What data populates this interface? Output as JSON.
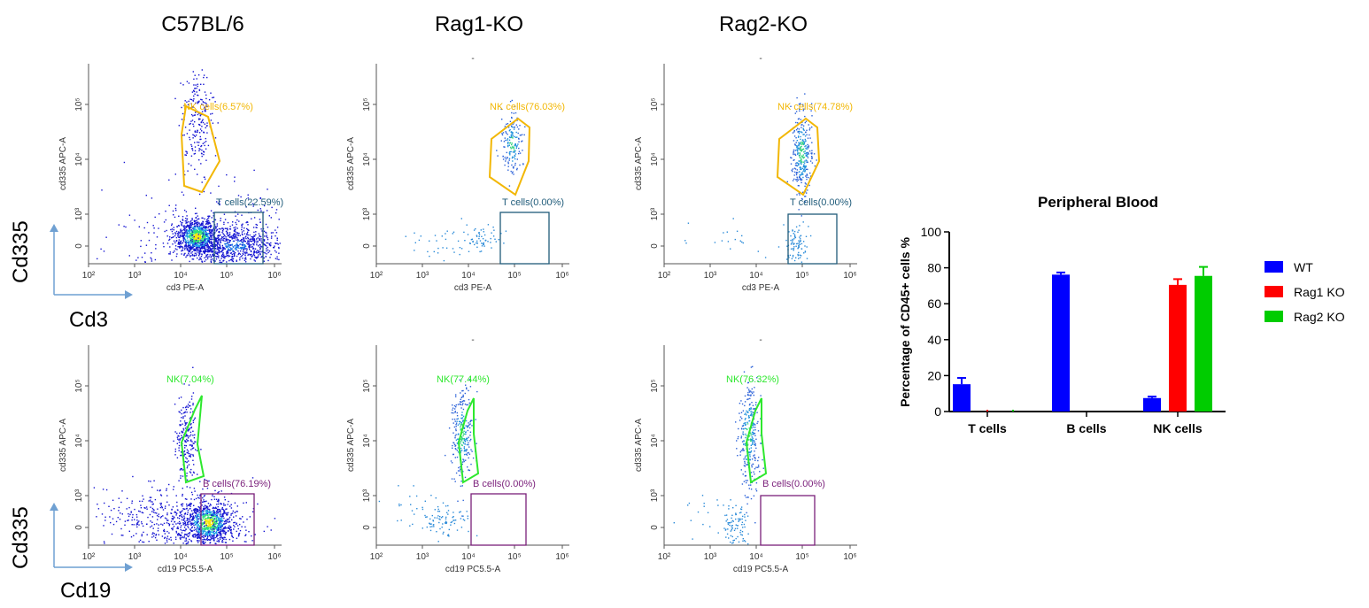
{
  "column_titles": [
    "C57BL/6",
    "Rag1-KO",
    "Rag2-KO"
  ],
  "row_labels": [
    {
      "y_marker": "Cd335",
      "x_marker": "Cd3"
    },
    {
      "y_marker": "Cd335",
      "x_marker": "Cd19"
    }
  ],
  "flow_panels": [
    {
      "row": 0,
      "col": 0,
      "y_axis_label": "cd335 APC-A",
      "x_axis_label": "cd3 PE-A",
      "x_ticks": [
        "10²",
        "10³",
        "10⁴",
        "10⁵",
        "10⁶"
      ],
      "y_ticks": [
        "0",
        "10³",
        "10⁴",
        "10⁵"
      ],
      "top_mark": "",
      "gates": [
        {
          "label": "NK cells(6.57%)",
          "shape": "polygon",
          "color": "#f2b705"
        },
        {
          "label": "T cells(22.59%)",
          "shape": "rect",
          "color": "#1f5b7a"
        }
      ]
    },
    {
      "row": 0,
      "col": 1,
      "y_axis_label": "cd335 APC-A",
      "x_axis_label": "cd3 PE-A",
      "x_ticks": [
        "10²",
        "10³",
        "10⁴",
        "10⁵",
        "10⁶"
      ],
      "y_ticks": [
        "0",
        "10³",
        "10⁴",
        "10⁵"
      ],
      "top_mark": "-",
      "gates": [
        {
          "label": "NK cells(76.03%)",
          "shape": "polygon",
          "color": "#f2b705"
        },
        {
          "label": "T cells(0.00%)",
          "shape": "rect",
          "color": "#1f5b7a"
        }
      ]
    },
    {
      "row": 0,
      "col": 2,
      "y_axis_label": "cd335 APC-A",
      "x_axis_label": "cd3 PE-A",
      "x_ticks": [
        "10²",
        "10³",
        "10⁴",
        "10⁵",
        "10⁶"
      ],
      "y_ticks": [
        "0",
        "10³",
        "10⁴",
        "10⁵"
      ],
      "top_mark": "-",
      "gates": [
        {
          "label": "NK cells(74.78%)",
          "shape": "polygon",
          "color": "#f2b705"
        },
        {
          "label": "T cells(0.00%)",
          "shape": "rect",
          "color": "#1f5b7a"
        }
      ]
    },
    {
      "row": 1,
      "col": 0,
      "y_axis_label": "cd335 APC-A",
      "x_axis_label": "cd19 PC5.5-A",
      "x_ticks": [
        "10²",
        "10³",
        "10⁴",
        "10⁵",
        "10⁶"
      ],
      "y_ticks": [
        "0",
        "10³",
        "10⁴",
        "10⁵"
      ],
      "top_mark": "",
      "gates": [
        {
          "label": "NK(7.04%)",
          "shape": "polygon",
          "color": "#2ee82e"
        },
        {
          "label": "B cells(76.19%)",
          "shape": "rect",
          "color": "#7a1f7a"
        }
      ]
    },
    {
      "row": 1,
      "col": 1,
      "y_axis_label": "cd335 APC-A",
      "x_axis_label": "cd19 PC5.5-A",
      "x_ticks": [
        "10²",
        "10³",
        "10⁴",
        "10⁵",
        "10⁶"
      ],
      "y_ticks": [
        "0",
        "10³",
        "10⁴",
        "10⁵"
      ],
      "top_mark": "-",
      "gates": [
        {
          "label": "NK(77.44%)",
          "shape": "polygon",
          "color": "#2ee82e"
        },
        {
          "label": "B cells(0.00%)",
          "shape": "rect",
          "color": "#7a1f7a"
        }
      ]
    },
    {
      "row": 1,
      "col": 2,
      "y_axis_label": "cd335 APC-A",
      "x_axis_label": "cd19 PC5.5-A",
      "x_ticks": [
        "10²",
        "10³",
        "10⁴",
        "10⁵",
        "10⁶"
      ],
      "y_ticks": [
        "0",
        "10³",
        "10⁴",
        "10⁵"
      ],
      "top_mark": "-",
      "gates": [
        {
          "label": "NK(76.32%)",
          "shape": "polygon",
          "color": "#2ee82e"
        },
        {
          "label": "B cells(0.00%)",
          "shape": "rect",
          "color": "#7a1f7a"
        }
      ]
    }
  ],
  "chart_data": {
    "type": "bar",
    "title": "Peripheral Blood",
    "xlabel": "",
    "ylabel": "Percentage of CD45+ cells %",
    "categories": [
      "T cells",
      "B cells",
      "NK cells"
    ],
    "ylim": [
      0,
      100
    ],
    "yticks": [
      0,
      20,
      40,
      60,
      80,
      100
    ],
    "legend_position": "right",
    "series": [
      {
        "name": "WT",
        "color": "#0000ff",
        "values": [
          15.2,
          76.2,
          7.5
        ],
        "errors": [
          3.5,
          1.2,
          0.8
        ]
      },
      {
        "name": "Rag1 KO",
        "color": "#ff0000",
        "values": [
          0,
          0,
          70.5
        ],
        "errors": [
          0,
          0,
          3.2
        ]
      },
      {
        "name": "Rag2 KO",
        "color": "#00cc00",
        "values": [
          0,
          0,
          75.5
        ],
        "errors": [
          0,
          0,
          5.0
        ]
      }
    ]
  }
}
